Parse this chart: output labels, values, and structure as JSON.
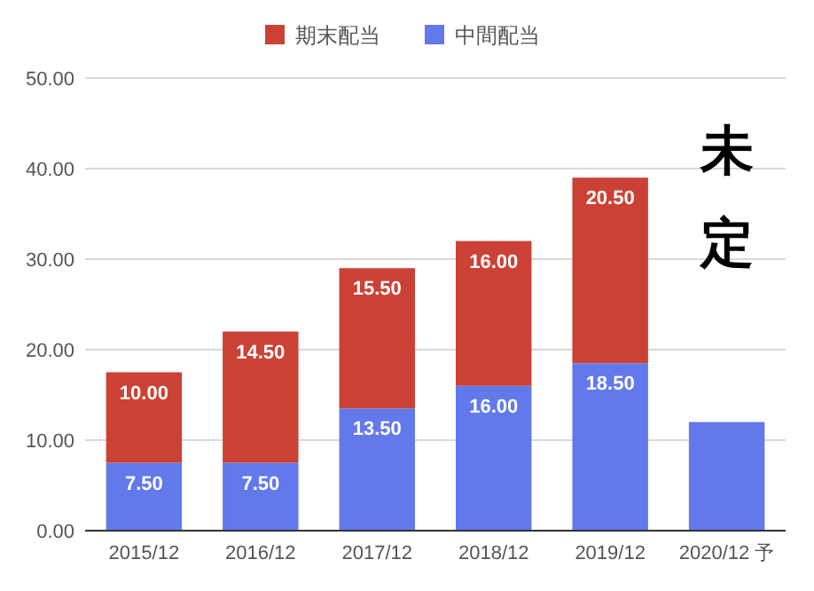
{
  "chart_data": {
    "type": "bar",
    "stacked": true,
    "categories": [
      "2015/12",
      "2016/12",
      "2017/12",
      "2018/12",
      "2019/12",
      "2020/12 予"
    ],
    "series": [
      {
        "name": "中間配当",
        "color": "#6279ec",
        "values": [
          7.5,
          7.5,
          13.5,
          16,
          18.5,
          12
        ],
        "value_labels": [
          "7.50",
          "7.50",
          "13.50",
          "16.00",
          "18.50",
          null
        ]
      },
      {
        "name": "期末配当",
        "color": "#cc4135",
        "values": [
          10,
          14.5,
          15.5,
          16,
          20.5,
          null
        ],
        "value_labels": [
          "10.00",
          "14.50",
          "15.50",
          "16.00",
          "20.50",
          null
        ]
      }
    ],
    "ylim": [
      0,
      50
    ],
    "yticks": [
      {
        "value": 0,
        "label": "0.00"
      },
      {
        "value": 10,
        "label": "10.00"
      },
      {
        "value": 20,
        "label": "20.00"
      },
      {
        "value": 30,
        "label": "30.00"
      },
      {
        "value": 40,
        "label": "40.00"
      },
      {
        "value": 50,
        "label": "50.00"
      }
    ],
    "grid": "y",
    "legend": "top",
    "annotations": [
      "未定"
    ]
  }
}
